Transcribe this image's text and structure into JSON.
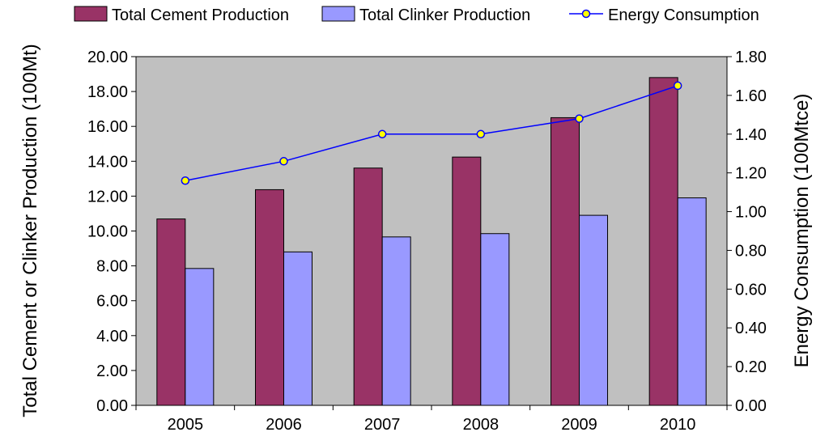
{
  "chart_data": {
    "type": "bar",
    "categories": [
      "2005",
      "2006",
      "2007",
      "2008",
      "2009",
      "2010"
    ],
    "series": [
      {
        "name": "Total Cement Production",
        "type": "bar",
        "axis": "left",
        "color": "#993366",
        "values": [
          10.69,
          12.37,
          13.61,
          14.24,
          16.5,
          18.8
        ]
      },
      {
        "name": "Total Clinker Production",
        "type": "bar",
        "axis": "left",
        "color": "#9999FF",
        "values": [
          7.85,
          8.8,
          9.66,
          9.85,
          10.9,
          11.9
        ]
      },
      {
        "name": "Energy Consumption",
        "type": "line",
        "axis": "right",
        "color": "#0000FF",
        "marker_color": "#FFFF00",
        "values": [
          1.16,
          1.26,
          1.4,
          1.4,
          1.48,
          1.65
        ]
      }
    ],
    "ylabel_left": "Total Cement or Clinker Production (100Mt)",
    "ylabel_right": "Energy Consumption (100Mtce)",
    "ylim_left": [
      0,
      20
    ],
    "ylim_right": [
      0,
      1.8
    ],
    "yticks_left": [
      "0.00",
      "2.00",
      "4.00",
      "6.00",
      "8.00",
      "10.00",
      "12.00",
      "14.00",
      "16.00",
      "18.00",
      "20.00"
    ],
    "yticks_right": [
      "0.00",
      "0.20",
      "0.40",
      "0.60",
      "0.80",
      "1.00",
      "1.20",
      "1.40",
      "1.60",
      "1.80"
    ],
    "plot_background": "#C0C0C0",
    "grid": false,
    "legend_position": "top"
  }
}
